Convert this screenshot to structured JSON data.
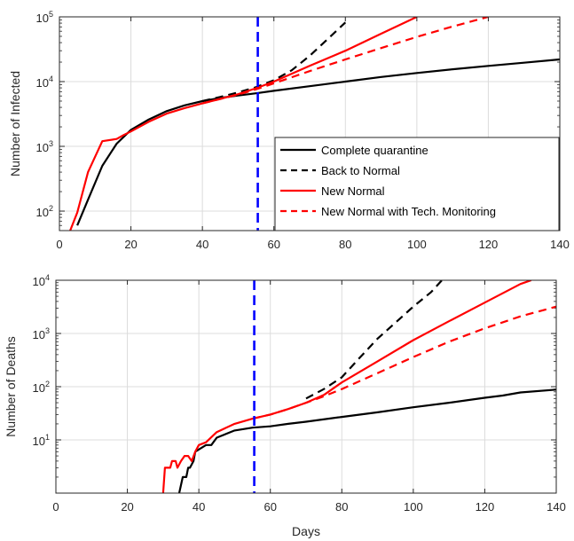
{
  "chart_data": [
    {
      "type": "line",
      "title": "",
      "xlabel": "",
      "ylabel": "Number of Infected",
      "xlim": [
        0,
        140
      ],
      "ylim": [
        50,
        100000
      ],
      "yscale": "log",
      "grid": true,
      "legend_position": "lower-right",
      "x_ticks": [
        "0",
        "20",
        "40",
        "60",
        "80",
        "100",
        "120",
        "140"
      ],
      "y_ticks": [
        {
          "value": 100,
          "base": "10",
          "exp": "2"
        },
        {
          "value": 1000,
          "base": "10",
          "exp": "3"
        },
        {
          "value": 10000,
          "base": "10",
          "exp": "4"
        },
        {
          "value": 100000,
          "base": "10",
          "exp": "5"
        }
      ],
      "vline": {
        "x": 55.5,
        "color": "#0000ff",
        "style": "dashed"
      },
      "series": [
        {
          "name": "Complete quarantine",
          "color": "#000000",
          "style": "solid",
          "x": [
            5,
            8,
            12,
            16,
            20,
            25,
            30,
            35,
            40,
            45,
            50,
            55,
            60,
            70,
            80,
            90,
            100,
            110,
            120,
            130,
            140
          ],
          "y": [
            60,
            150,
            500,
            1100,
            1800,
            2600,
            3500,
            4300,
            5000,
            5600,
            6100,
            6600,
            7200,
            8500,
            10000,
            11800,
            13600,
            15500,
            17500,
            19600,
            22000
          ]
        },
        {
          "name": "Back to Normal",
          "color": "#000000",
          "style": "dashed",
          "x": [
            40,
            45,
            50,
            55,
            60,
            65,
            70,
            75,
            80
          ],
          "y": [
            5000,
            5800,
            6800,
            8200,
            10500,
            15000,
            25000,
            45000,
            82000
          ]
        },
        {
          "name": "New Normal",
          "color": "#ff0000",
          "style": "solid",
          "x": [
            3,
            5,
            8,
            12,
            16,
            18,
            20,
            25,
            30,
            35,
            40,
            45,
            50,
            55,
            60,
            70,
            80,
            90,
            100
          ],
          "y": [
            50,
            95,
            400,
            1200,
            1300,
            1500,
            1700,
            2400,
            3200,
            3900,
            4600,
            5400,
            6400,
            7900,
            10000,
            17500,
            30000,
            55000,
            100000
          ]
        },
        {
          "name": "New Normal with Tech. Monitoring",
          "color": "#ff0000",
          "style": "dashed",
          "x": [
            40,
            45,
            50,
            55,
            60,
            70,
            80,
            90,
            100,
            110,
            120
          ],
          "y": [
            4600,
            5400,
            6300,
            7600,
            9400,
            14500,
            22000,
            33000,
            49000,
            71000,
            100000
          ]
        }
      ]
    },
    {
      "type": "line",
      "title": "",
      "xlabel": "Days",
      "ylabel": "Number of Deaths",
      "xlim": [
        0,
        140
      ],
      "ylim": [
        1,
        10000
      ],
      "yscale": "log",
      "grid": true,
      "x_ticks": [
        "0",
        "20",
        "40",
        "60",
        "80",
        "100",
        "120",
        "140"
      ],
      "y_ticks": [
        {
          "value": 10,
          "base": "10",
          "exp": "1"
        },
        {
          "value": 100,
          "base": "10",
          "exp": "2"
        },
        {
          "value": 1000,
          "base": "10",
          "exp": "3"
        },
        {
          "value": 10000,
          "base": "10",
          "exp": "4"
        }
      ],
      "vline": {
        "x": 55.5,
        "color": "#0000ff",
        "style": "dashed"
      },
      "series": [
        {
          "name": "Complete quarantine",
          "color": "#000000",
          "style": "solid",
          "x": [
            34.5,
            35.5,
            36.5,
            37,
            37.5,
            38.5,
            39,
            42,
            43.5,
            45,
            50,
            55,
            60,
            65,
            70,
            80,
            90,
            100,
            110,
            120,
            125,
            130,
            140
          ],
          "y": [
            1,
            2,
            2,
            3,
            3,
            4,
            6,
            8,
            8,
            11,
            15,
            17,
            18,
            20,
            22,
            27,
            33,
            41,
            50,
            62,
            68,
            78,
            88
          ]
        },
        {
          "name": "Back to Normal",
          "color": "#000000",
          "style": "dashed",
          "x": [
            70,
            75,
            80,
            85,
            90,
            95,
            100,
            105,
            108
          ],
          "y": [
            60,
            90,
            150,
            350,
            800,
            1600,
            3200,
            6000,
            10000
          ]
        },
        {
          "name": "New Normal",
          "color": "#ff0000",
          "style": "solid",
          "x": [
            30,
            30.5,
            32,
            32.5,
            33.5,
            34,
            35,
            36,
            37,
            38,
            39,
            40,
            42,
            45,
            50,
            55,
            60,
            65,
            70,
            75,
            80,
            90,
            100,
            110,
            120,
            130,
            133
          ],
          "y": [
            1,
            3,
            3,
            4,
            4,
            3,
            4,
            5,
            5,
            4,
            6,
            8,
            9,
            14,
            20,
            25,
            30,
            38,
            50,
            70,
            120,
            300,
            750,
            1700,
            3800,
            8500,
            10000
          ]
        },
        {
          "name": "New Normal with Tech. Monitoring",
          "color": "#ff0000",
          "style": "dashed",
          "x": [
            55,
            60,
            65,
            70,
            75,
            80,
            90,
            100,
            110,
            120,
            130,
            140
          ],
          "y": [
            25,
            30,
            38,
            50,
            66,
            90,
            180,
            360,
            700,
            1250,
            2100,
            3200
          ]
        }
      ]
    }
  ]
}
